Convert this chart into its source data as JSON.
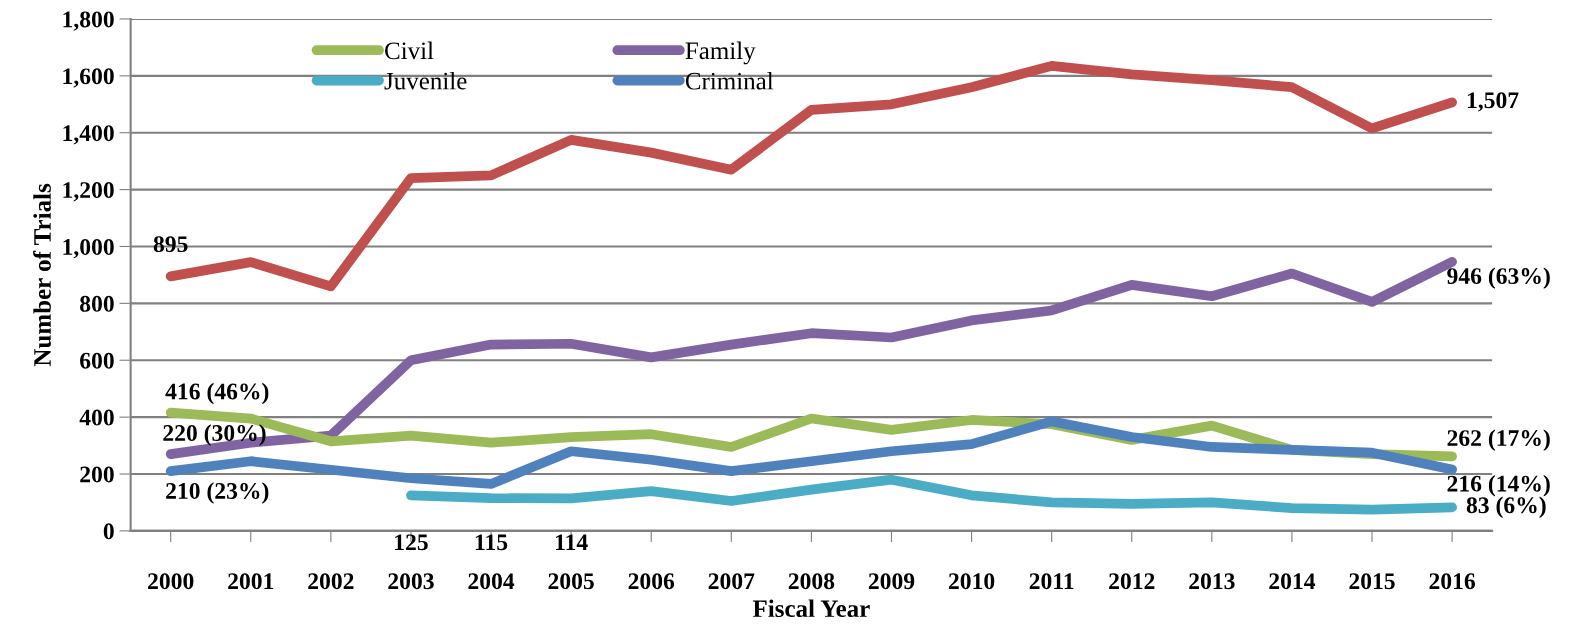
{
  "chart_data": {
    "type": "line",
    "xlabel": "Fiscal Year",
    "ylabel": "Number of Trials",
    "categories": [
      "2000",
      "2001",
      "2002",
      "2003",
      "2004",
      "2005",
      "2006",
      "2007",
      "2008",
      "2009",
      "2010",
      "2011",
      "2012",
      "2013",
      "2014",
      "2015",
      "2016"
    ],
    "series": [
      {
        "color": "#c0504d",
        "values": [
          895,
          945,
          860,
          1240,
          1250,
          1375,
          1330,
          1270,
          1480,
          1500,
          1560,
          1635,
          1605,
          1585,
          1560,
          1415,
          1507
        ],
        "value_labels": [
          "895",
          null,
          null,
          null,
          null,
          null,
          null,
          null,
          null,
          null,
          null,
          null,
          null,
          null,
          null,
          null,
          "1,507"
        ]
      },
      {
        "name": "Family",
        "color": "#8064a2",
        "values": [
          270,
          310,
          335,
          600,
          655,
          658,
          610,
          655,
          695,
          680,
          740,
          775,
          865,
          825,
          905,
          805,
          946
        ],
        "value_labels": [
          null,
          null,
          null,
          null,
          null,
          null,
          null,
          null,
          null,
          null,
          null,
          null,
          null,
          null,
          null,
          null,
          "946 (63%)"
        ]
      },
      {
        "name": "Civil",
        "color": "#9bbb59",
        "values": [
          416,
          395,
          315,
          335,
          310,
          330,
          340,
          295,
          395,
          355,
          390,
          375,
          320,
          370,
          285,
          270,
          262
        ],
        "value_labels": [
          "416 (46%)",
          null,
          null,
          null,
          null,
          null,
          null,
          null,
          null,
          null,
          null,
          null,
          null,
          null,
          null,
          null,
          "262 (17%)"
        ]
      },
      {
        "name": "Criminal",
        "color": "#4f81bd",
        "values": [
          210,
          245,
          215,
          185,
          165,
          280,
          250,
          210,
          245,
          280,
          305,
          385,
          330,
          295,
          285,
          275,
          216
        ],
        "value_labels": [
          "210 (23%)",
          null,
          null,
          null,
          null,
          null,
          null,
          null,
          null,
          null,
          null,
          null,
          null,
          null,
          null,
          null,
          "216 (14%)"
        ]
      },
      {
        "name": "Juvenile",
        "color": "#4bacc6",
        "values": [
          null,
          null,
          null,
          125,
          115,
          114,
          140,
          105,
          145,
          180,
          125,
          100,
          95,
          100,
          80,
          75,
          83
        ],
        "value_labels": [
          null,
          null,
          null,
          "125",
          "115",
          "114",
          null,
          null,
          null,
          null,
          null,
          null,
          null,
          null,
          null,
          null,
          "83 (6%)"
        ]
      }
    ],
    "annotations": [
      {
        "text": "220 (30%)",
        "x": "2000",
        "y": 270
      }
    ],
    "ylim": [
      0,
      1800
    ],
    "yticks": [
      0,
      {
        "value": 200,
        "label": "200"
      },
      {
        "value": 400,
        "label": "400"
      },
      {
        "value": 600,
        "label": "600"
      },
      {
        "value": 800,
        "label": "800"
      },
      {
        "value": 1000,
        "label": "1,000"
      },
      {
        "value": 1200,
        "label": "1,200"
      },
      {
        "value": 1400,
        "label": "1,400"
      },
      {
        "value": 1600,
        "label": "1,600"
      },
      {
        "value": 1800,
        "label": "1,800"
      }
    ],
    "grid": "y",
    "legend": "top left",
    "marker": "none",
    "line_style": "solid"
  }
}
